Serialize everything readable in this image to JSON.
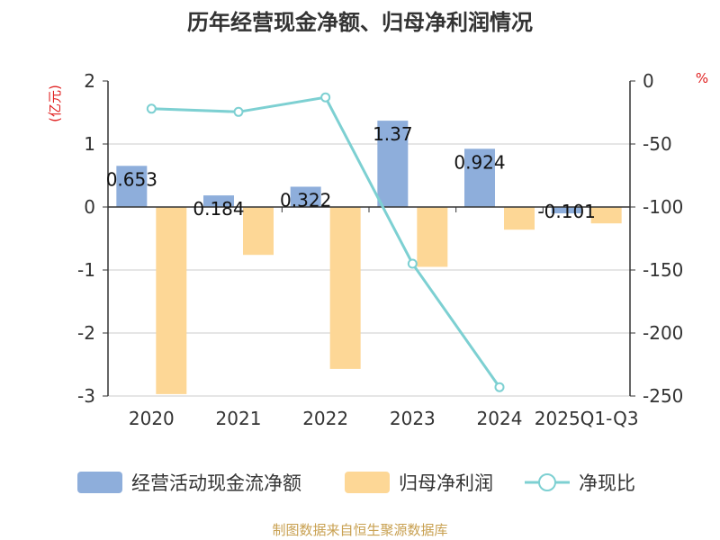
{
  "chart_data": {
    "type": "bar+line",
    "title": "历年经营现金净额、归母净利润情况",
    "categories": [
      "2020",
      "2021",
      "2022",
      "2023",
      "2024",
      "2025Q1-Q3"
    ],
    "series": [
      {
        "name": "经营活动现金流净额",
        "axis": "left",
        "kind": "bar",
        "color": "#8eaedb",
        "values": [
          0.653,
          0.184,
          0.322,
          1.37,
          0.924,
          -0.101
        ],
        "labels": [
          "0.653",
          "0.184",
          "0.322",
          "1.37",
          "0.924",
          "-0.101"
        ]
      },
      {
        "name": "归母净利润",
        "axis": "left",
        "kind": "bar",
        "color": "#fdd796",
        "values": [
          -2.97,
          -0.76,
          -2.57,
          -0.95,
          -0.36,
          -0.26
        ]
      },
      {
        "name": "净现比",
        "axis": "right",
        "kind": "line",
        "color": "#7dd0d2",
        "values": [
          -22,
          -24.5,
          -13,
          -145,
          -243,
          null
        ]
      }
    ],
    "y_left": {
      "unit": "(亿元)",
      "min": -3,
      "max": 2,
      "ticks": [
        "2",
        "1",
        "0",
        "-1",
        "-2",
        "-3"
      ]
    },
    "y_right": {
      "unit": "%",
      "min": -250,
      "max": 0,
      "ticks": [
        "0",
        "-50",
        "-100",
        "-150",
        "-200",
        "-250"
      ]
    },
    "legend_position": "bottom",
    "source": "制图数据来自恒生聚源数据库",
    "colors": {
      "axis": "#333333",
      "grid": "#cccccc",
      "unit": "#e02020",
      "source": "#c8a050"
    }
  }
}
